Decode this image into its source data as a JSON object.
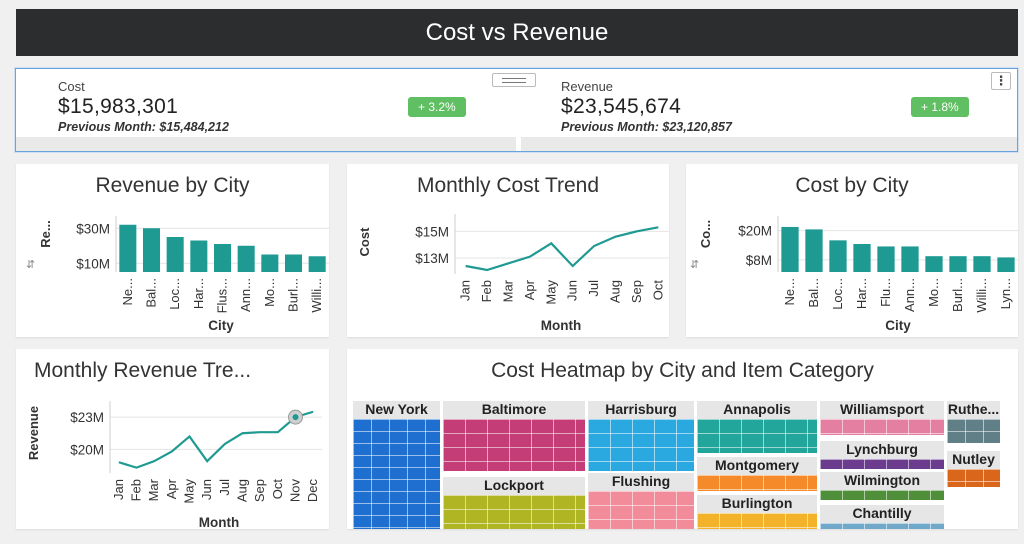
{
  "header": {
    "title": "Cost vs Revenue"
  },
  "kpis": {
    "cost": {
      "label": "Cost",
      "value": "$15,983,301",
      "previous": "Previous Month: $15,484,212",
      "change": "+ 3.2%"
    },
    "revenue": {
      "label": "Revenue",
      "value": "$23,545,674",
      "previous": "Previous Month: $23,120,857",
      "change": "+ 1.8%"
    },
    "menu_icon": "more-vertical-icon",
    "handle_icon": "drag-handle-icon"
  },
  "colors": {
    "teal": "#1f9a93",
    "badge": "#5fbf62",
    "header": "#2c2d2f"
  },
  "chart_data": [
    {
      "id": "revenue_by_city",
      "type": "bar",
      "title": "Revenue by City",
      "xlabel": "City",
      "ylabel": "Re...",
      "categories": [
        "Ne...",
        "Bal...",
        "Loc...",
        "Har...",
        "Flus...",
        "Ann...",
        "Mo...",
        "Burl...",
        "Willi..."
      ],
      "values": [
        32,
        30,
        25,
        23,
        21,
        20,
        15,
        15,
        14
      ],
      "yticks": [
        {
          "value": 30,
          "label": "$30M"
        },
        {
          "value": 10,
          "label": "$10M"
        }
      ],
      "ylim": [
        5,
        37
      ]
    },
    {
      "id": "monthly_cost_trend",
      "type": "line",
      "title": "Monthly Cost Trend",
      "xlabel": "Month",
      "ylabel": "Cost",
      "categories": [
        "Jan",
        "Feb",
        "Mar",
        "Apr",
        "May",
        "Jun",
        "Jul",
        "Aug",
        "Sep",
        "Oct"
      ],
      "values": [
        12.4,
        12.1,
        12.6,
        13.1,
        14.1,
        12.4,
        13.9,
        14.6,
        15.0,
        15.3
      ],
      "yticks": [
        {
          "value": 15,
          "label": "$15M"
        },
        {
          "value": 13,
          "label": "$13M"
        }
      ],
      "ylim": [
        11.8,
        16.3
      ]
    },
    {
      "id": "cost_by_city",
      "type": "bar",
      "title": "Cost by City",
      "xlabel": "City",
      "ylabel": "Co...",
      "categories": [
        "Ne...",
        "Bal...",
        "Loc...",
        "Har...",
        "Flu...",
        "Ann...",
        "Mo...",
        "Burl...",
        "Willi...",
        "Lyn..."
      ],
      "values": [
        21.5,
        20.5,
        16,
        14.5,
        13.5,
        13.5,
        9.5,
        9.5,
        9.5,
        9.0
      ],
      "yticks": [
        {
          "value": 20,
          "label": "$20M"
        },
        {
          "value": 8,
          "label": "$8M"
        }
      ],
      "ylim": [
        3,
        26
      ]
    },
    {
      "id": "monthly_revenue_trend",
      "type": "line",
      "title": "Monthly Revenue Tre...",
      "xlabel": "Month",
      "ylabel": "Revenue",
      "categories": [
        "Jan",
        "Feb",
        "Mar",
        "Apr",
        "May",
        "Jun",
        "Jul",
        "Aug",
        "Sep",
        "Oct",
        "Nov",
        "Dec"
      ],
      "values": [
        18.8,
        18.3,
        18.9,
        19.8,
        21.2,
        18.9,
        20.5,
        21.5,
        21.6,
        21.6,
        23.0,
        23.5
      ],
      "yticks": [
        {
          "value": 23,
          "label": "$23M"
        },
        {
          "value": 20,
          "label": "$20M"
        }
      ],
      "ylim": [
        17.8,
        24.5
      ]
    },
    {
      "id": "cost_heatmap",
      "type": "treemap",
      "title": "Cost Heatmap by City and Item Category",
      "labels": [
        "New York",
        "Baltimore",
        "Harrisburg",
        "Annapolis",
        "Williamsport",
        "Ruthe...",
        "Lockport",
        "Flushing",
        "Montgomery",
        "Lynchburg",
        "Nutley",
        "Burlington",
        "Wilmington",
        "Chantilly"
      ]
    }
  ]
}
